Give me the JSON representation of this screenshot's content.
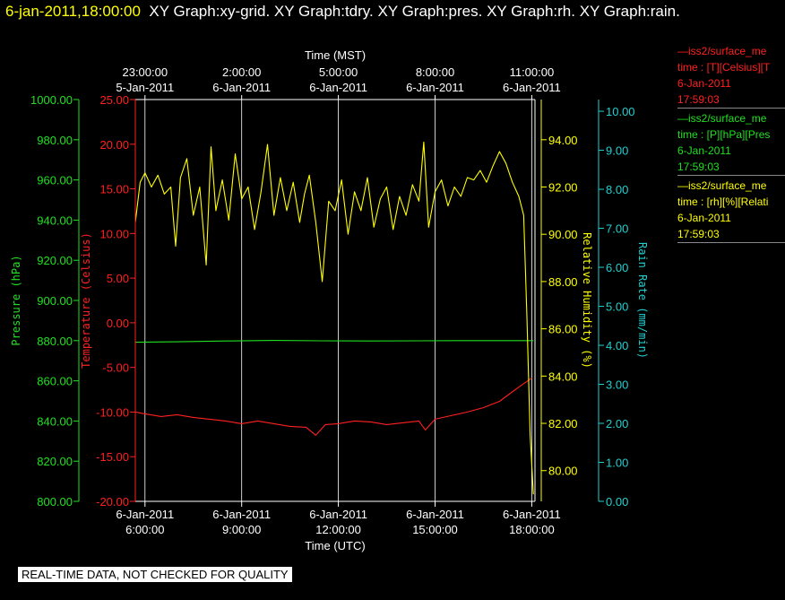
{
  "header": {
    "timestamp": "6-jan-2011,18:00:00",
    "graphs": "XY Graph:xy-grid.  XY Graph:tdry.  XY Graph:pres.  XY Graph:rh.  XY Graph:rain."
  },
  "legend": [
    {
      "name": "iss2/surface_me",
      "prefix": "—",
      "line2": "time : [T][Celsius][T",
      "date": "6-Jan-2011",
      "time": "17:59:03",
      "color": "#ff2020"
    },
    {
      "name": "iss2/surface_me",
      "prefix": "—",
      "line2": "time : [P][hPa][Pres",
      "date": "6-Jan-2011",
      "time": "17:59:03",
      "color": "#20e020"
    },
    {
      "name": "iss2/surface_me",
      "prefix": "—",
      "line2": "time : [rh][%][Relati",
      "date": "6-Jan-2011",
      "time": "17:59:03",
      "color": "#ffff00"
    }
  ],
  "banner": "REAL-TIME DATA, NOT CHECKED FOR QUALITY",
  "chart_data": {
    "type": "line",
    "x_range_utc_hours": [
      5.7,
      18.1
    ],
    "grid": true,
    "top_axis": {
      "label": "Time (MST)",
      "ticks": [
        {
          "x": 6,
          "time": "23:00:00",
          "date": "5-Jan-2011"
        },
        {
          "x": 9,
          "time": "2:00:00",
          "date": "6-Jan-2011"
        },
        {
          "x": 12,
          "time": "5:00:00",
          "date": "6-Jan-2011"
        },
        {
          "x": 15,
          "time": "8:00:00",
          "date": "6-Jan-2011"
        },
        {
          "x": 18,
          "time": "11:00:00",
          "date": "6-Jan-2011"
        }
      ]
    },
    "bottom_axis": {
      "label": "Time (UTC)",
      "ticks": [
        {
          "x": 6,
          "date": "6-Jan-2011",
          "time": "6:00:00"
        },
        {
          "x": 9,
          "date": "6-Jan-2011",
          "time": "9:00:00"
        },
        {
          "x": 12,
          "date": "6-Jan-2011",
          "time": "12:00:00"
        },
        {
          "x": 15,
          "date": "6-Jan-2011",
          "time": "15:00:00"
        },
        {
          "x": 18,
          "date": "6-Jan-2011",
          "time": "18:00:00"
        }
      ]
    },
    "y_axes": [
      {
        "id": "pres",
        "label": "Pressure (hPa)",
        "color": "#20e020",
        "ylim": [
          800,
          1000
        ],
        "ticks": [
          "800.00",
          "820.00",
          "840.00",
          "860.00",
          "880.00",
          "900.00",
          "920.00",
          "940.00",
          "960.00",
          "980.00",
          "1000.00"
        ]
      },
      {
        "id": "tdry",
        "label": "Temperature (Celsius)",
        "color": "#ff2020",
        "ylim": [
          -20,
          25
        ],
        "ticks": [
          "-20.00",
          "-15.00",
          "-10.00",
          "-5.00",
          "0.00",
          "5.00",
          "10.00",
          "15.00",
          "20.00",
          "25.00"
        ]
      },
      {
        "id": "rh",
        "label": "Relative Humidity (%)",
        "color": "#ffff00",
        "ylim": [
          78.7,
          95.7
        ],
        "ticks": [
          "80.00",
          "82.00",
          "84.00",
          "86.00",
          "88.00",
          "90.00",
          "92.00",
          "94.00"
        ]
      },
      {
        "id": "rain",
        "label": "Rain Rate (mm/min)",
        "color": "#20d0d0",
        "ylim": [
          0,
          10.3
        ],
        "ticks": [
          "0.00",
          "1.00",
          "2.00",
          "3.00",
          "4.00",
          "5.00",
          "6.00",
          "7.00",
          "8.00",
          "9.00",
          "10.00"
        ]
      }
    ],
    "series": [
      {
        "axis": "pres",
        "color": "#20e020",
        "x": [
          5.7,
          7,
          8.5,
          10,
          11.5,
          13,
          14.5,
          16,
          17.5,
          18.05
        ],
        "y": [
          879.2,
          879.4,
          879.8,
          880.1,
          879.9,
          879.8,
          879.9,
          880.0,
          880.0,
          880.0
        ]
      },
      {
        "axis": "tdry",
        "color": "#ff2020",
        "x": [
          5.7,
          6.0,
          6.5,
          7.0,
          7.5,
          8.0,
          8.5,
          9.0,
          9.5,
          10.0,
          10.5,
          11.0,
          11.3,
          11.6,
          12.0,
          12.5,
          13.0,
          13.5,
          14.0,
          14.5,
          14.7,
          15.0,
          15.5,
          16.0,
          16.5,
          17.0,
          17.3,
          17.6,
          17.8,
          18.0
        ],
        "y": [
          -10.0,
          -10.2,
          -10.5,
          -10.3,
          -10.6,
          -10.8,
          -11.0,
          -11.3,
          -11.0,
          -11.3,
          -11.6,
          -11.7,
          -12.6,
          -11.4,
          -11.3,
          -11.0,
          -11.1,
          -11.4,
          -11.2,
          -11.0,
          -12.0,
          -10.8,
          -10.4,
          -10.0,
          -9.5,
          -8.8,
          -8.0,
          -7.2,
          -6.7,
          -6.2
        ]
      },
      {
        "axis": "rh",
        "color": "#ffff00",
        "x": [
          5.7,
          5.85,
          6.0,
          6.2,
          6.4,
          6.6,
          6.8,
          6.95,
          7.1,
          7.3,
          7.5,
          7.7,
          7.9,
          8.05,
          8.2,
          8.4,
          8.6,
          8.8,
          9.0,
          9.2,
          9.4,
          9.6,
          9.8,
          10.0,
          10.2,
          10.4,
          10.6,
          10.8,
          10.95,
          11.1,
          11.3,
          11.5,
          11.7,
          11.9,
          12.1,
          12.3,
          12.5,
          12.7,
          12.9,
          13.1,
          13.3,
          13.5,
          13.7,
          13.9,
          14.1,
          14.3,
          14.5,
          14.65,
          14.8,
          15.0,
          15.2,
          15.4,
          15.6,
          15.8,
          16.0,
          16.2,
          16.4,
          16.6,
          16.8,
          17.0,
          17.2,
          17.4,
          17.6,
          17.75,
          17.85,
          17.95,
          18.05
        ],
        "y": [
          90.5,
          92.2,
          92.6,
          92.0,
          92.5,
          91.7,
          92.0,
          89.5,
          92.4,
          93.2,
          90.8,
          92.0,
          88.7,
          93.7,
          91.0,
          92.3,
          90.6,
          93.4,
          91.5,
          92.0,
          90.2,
          91.8,
          93.8,
          90.8,
          92.4,
          91.0,
          92.2,
          90.5,
          91.7,
          92.5,
          90.5,
          88.0,
          91.4,
          91.0,
          92.3,
          90.0,
          91.8,
          91.0,
          92.4,
          90.3,
          91.5,
          92.0,
          90.2,
          91.6,
          90.8,
          92.1,
          91.4,
          93.9,
          90.3,
          91.8,
          92.3,
          91.2,
          92.0,
          91.6,
          92.4,
          92.3,
          92.7,
          92.2,
          92.9,
          93.5,
          93.0,
          92.2,
          91.6,
          90.8,
          86.5,
          81.5,
          79.0
        ]
      }
    ]
  }
}
